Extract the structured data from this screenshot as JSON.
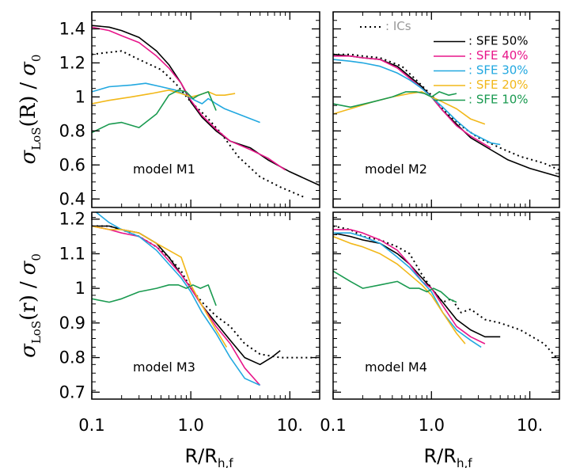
{
  "colors": {
    "ics": "#000000",
    "sfe50": "#000000",
    "sfe40": "#e8168a",
    "sfe30": "#22a8e0",
    "sfe20": "#f2b81a",
    "sfe10": "#1a9a50",
    "ics_label": "#999999"
  },
  "legend": [
    {
      "key": "ics",
      "text": ": ICs"
    },
    {
      "key": "sfe50",
      "text": ": SFE 50%"
    },
    {
      "key": "sfe40",
      "text": ": SFE 40%"
    },
    {
      "key": "sfe30",
      "text": ": SFE 30%"
    },
    {
      "key": "sfe20",
      "text": ": SFE 20%"
    },
    {
      "key": "sfe10",
      "text": ": SFE 10%"
    }
  ],
  "axes": {
    "ylabel_top_sym": "σ",
    "ylabel_top_sub": "LoS",
    "ylabel_top_arg": "(R)",
    "ylabel_top_div": "/",
    "ylabel_top_den": "σ",
    "ylabel_top_den_sub": "0",
    "ylabel_bot_sym": "σ",
    "ylabel_bot_sub": "LoS",
    "ylabel_bot_arg": "(r)",
    "ylabel_bot_div": "/",
    "ylabel_bot_den": "σ",
    "ylabel_bot_den_sub": "0",
    "xlabel_main": "R/R",
    "xlabel_sub": "h,f"
  },
  "chart_data": [
    {
      "type": "line",
      "panel": "M1",
      "label": "model M1",
      "x_scale": "log",
      "xlim": [
        0.1,
        20
      ],
      "ylim": [
        0.35,
        1.5
      ],
      "yticks": [
        0.4,
        0.6,
        0.8,
        1.0,
        1.2,
        1.4
      ],
      "xticks": [
        0.1,
        1.0,
        10.0
      ],
      "series": [
        {
          "key": "ics",
          "x": [
            0.1,
            0.14,
            0.2,
            0.3,
            0.5,
            0.7,
            1.0,
            1.4,
            2.0,
            3.0,
            5.0,
            8.0,
            14.0
          ],
          "y": [
            1.25,
            1.26,
            1.27,
            1.22,
            1.16,
            1.08,
            0.97,
            0.89,
            0.79,
            0.65,
            0.53,
            0.47,
            0.41
          ]
        },
        {
          "key": "sfe50",
          "x": [
            0.1,
            0.15,
            0.2,
            0.3,
            0.45,
            0.6,
            0.8,
            1.0,
            1.3,
            1.8,
            2.5,
            4.0,
            6.0,
            10.0,
            20.0
          ],
          "y": [
            1.42,
            1.41,
            1.39,
            1.35,
            1.27,
            1.19,
            1.08,
            0.97,
            0.88,
            0.8,
            0.74,
            0.7,
            0.63,
            0.56,
            0.48
          ]
        },
        {
          "key": "sfe40",
          "x": [
            0.1,
            0.15,
            0.2,
            0.3,
            0.45,
            0.6,
            0.8,
            1.0,
            1.3,
            1.8,
            2.5,
            4.0,
            6.0,
            9.0
          ],
          "y": [
            1.41,
            1.39,
            1.36,
            1.32,
            1.24,
            1.17,
            1.08,
            0.98,
            0.89,
            0.81,
            0.74,
            0.69,
            0.64,
            0.57
          ]
        },
        {
          "key": "sfe30",
          "x": [
            0.1,
            0.15,
            0.25,
            0.35,
            0.5,
            0.7,
            0.9,
            1.1,
            1.3,
            1.5,
            1.8,
            2.2,
            5.0
          ],
          "y": [
            1.03,
            1.06,
            1.07,
            1.08,
            1.06,
            1.04,
            1.01,
            0.98,
            0.96,
            0.99,
            0.96,
            0.93,
            0.85
          ]
        },
        {
          "key": "sfe20",
          "x": [
            0.1,
            0.15,
            0.25,
            0.4,
            0.6,
            0.8,
            1.0,
            1.2,
            1.5,
            1.8,
            2.2,
            2.8
          ],
          "y": [
            0.96,
            0.98,
            1.0,
            1.02,
            1.04,
            1.02,
            1.0,
            1.01,
            1.03,
            1.01,
            1.01,
            1.02
          ]
        },
        {
          "key": "sfe10",
          "x": [
            0.1,
            0.15,
            0.2,
            0.3,
            0.45,
            0.6,
            0.75,
            0.9,
            1.05,
            1.2,
            1.5,
            1.8
          ],
          "y": [
            0.79,
            0.84,
            0.85,
            0.82,
            0.9,
            1.01,
            1.04,
            1.03,
            0.99,
            1.01,
            1.03,
            0.92
          ]
        }
      ]
    },
    {
      "type": "line",
      "panel": "M2",
      "label": "model M2",
      "x_scale": "log",
      "xlim": [
        0.1,
        20
      ],
      "ylim": [
        0.35,
        1.5
      ],
      "yticks": [
        0.4,
        0.6,
        0.8,
        1.0,
        1.2,
        1.4
      ],
      "xticks": [
        0.1,
        1.0,
        10.0
      ],
      "series": [
        {
          "key": "ics",
          "x": [
            0.1,
            0.15,
            0.2,
            0.3,
            0.5,
            0.7,
            1.0,
            1.4,
            2.0,
            3.0,
            5.0,
            8.0,
            14.0,
            20.0
          ],
          "y": [
            1.25,
            1.25,
            1.24,
            1.23,
            1.18,
            1.1,
            1.01,
            0.91,
            0.83,
            0.76,
            0.7,
            0.65,
            0.61,
            0.57
          ]
        },
        {
          "key": "sfe50",
          "x": [
            0.1,
            0.15,
            0.2,
            0.3,
            0.45,
            0.6,
            0.8,
            1.0,
            1.3,
            1.8,
            2.5,
            4.0,
            6.0,
            10.0,
            20.0
          ],
          "y": [
            1.25,
            1.24,
            1.23,
            1.22,
            1.18,
            1.12,
            1.06,
            1.0,
            0.92,
            0.84,
            0.76,
            0.69,
            0.63,
            0.58,
            0.53
          ]
        },
        {
          "key": "sfe40",
          "x": [
            0.1,
            0.15,
            0.2,
            0.3,
            0.45,
            0.6,
            0.8,
            1.0,
            1.3,
            1.8,
            2.5,
            4.0
          ],
          "y": [
            1.24,
            1.24,
            1.23,
            1.22,
            1.17,
            1.11,
            1.05,
            1.0,
            0.92,
            0.83,
            0.77,
            0.7
          ]
        },
        {
          "key": "sfe30",
          "x": [
            0.1,
            0.15,
            0.2,
            0.3,
            0.45,
            0.6,
            0.8,
            1.0,
            1.3,
            1.8,
            2.5,
            4.0,
            5.0
          ],
          "y": [
            1.22,
            1.21,
            1.2,
            1.18,
            1.14,
            1.1,
            1.05,
            1.0,
            0.94,
            0.86,
            0.79,
            0.73,
            0.72
          ]
        },
        {
          "key": "sfe20",
          "x": [
            0.1,
            0.15,
            0.25,
            0.4,
            0.6,
            0.8,
            1.0,
            1.3,
            1.8,
            2.5,
            3.5
          ],
          "y": [
            0.9,
            0.93,
            0.97,
            1.0,
            1.02,
            1.03,
            1.0,
            0.97,
            0.93,
            0.87,
            0.84
          ]
        },
        {
          "key": "sfe10",
          "x": [
            0.1,
            0.15,
            0.25,
            0.4,
            0.55,
            0.7,
            0.85,
            1.0,
            1.2,
            1.5,
            1.8
          ],
          "y": [
            0.96,
            0.94,
            0.97,
            1.0,
            1.03,
            1.03,
            1.02,
            1.0,
            1.03,
            1.01,
            1.02
          ]
        }
      ]
    },
    {
      "type": "line",
      "panel": "M3",
      "label": "model M3",
      "x_scale": "log",
      "xlim": [
        0.1,
        20
      ],
      "ylim": [
        0.68,
        1.22
      ],
      "yticks": [
        0.7,
        0.8,
        0.9,
        1.0,
        1.1,
        1.2
      ],
      "xticks": [
        0.1,
        1.0,
        10.0
      ],
      "series": [
        {
          "key": "ics",
          "x": [
            0.1,
            0.15,
            0.2,
            0.3,
            0.45,
            0.6,
            0.8,
            1.0,
            1.3,
            1.8,
            2.5,
            3.5,
            5.0,
            8.0,
            14.0,
            20.0
          ],
          "y": [
            1.18,
            1.18,
            1.17,
            1.15,
            1.12,
            1.09,
            1.05,
            1.0,
            0.96,
            0.92,
            0.89,
            0.84,
            0.81,
            0.8,
            0.8,
            0.8
          ]
        },
        {
          "key": "sfe50",
          "x": [
            0.1,
            0.15,
            0.2,
            0.3,
            0.45,
            0.6,
            0.8,
            1.0,
            1.3,
            1.8,
            2.5,
            3.5,
            5.0,
            6.5,
            8.0
          ],
          "y": [
            1.18,
            1.18,
            1.17,
            1.16,
            1.13,
            1.09,
            1.04,
            1.0,
            0.95,
            0.9,
            0.85,
            0.8,
            0.78,
            0.8,
            0.82
          ]
        },
        {
          "key": "sfe40",
          "x": [
            0.1,
            0.15,
            0.2,
            0.3,
            0.45,
            0.6,
            0.8,
            1.0,
            1.3,
            1.8,
            2.5,
            3.5,
            5.0
          ],
          "y": [
            1.18,
            1.17,
            1.16,
            1.15,
            1.12,
            1.08,
            1.04,
            1.0,
            0.95,
            0.89,
            0.84,
            0.77,
            0.72
          ]
        },
        {
          "key": "sfe30",
          "x": [
            0.1,
            0.15,
            0.2,
            0.3,
            0.45,
            0.6,
            0.8,
            1.0,
            1.3,
            1.8,
            2.5,
            3.5,
            5.0
          ],
          "y": [
            1.23,
            1.19,
            1.17,
            1.15,
            1.11,
            1.07,
            1.03,
            0.99,
            0.93,
            0.87,
            0.8,
            0.74,
            0.72
          ]
        },
        {
          "key": "sfe20",
          "x": [
            0.1,
            0.15,
            0.2,
            0.3,
            0.45,
            0.6,
            0.8,
            1.0,
            1.3,
            1.8,
            2.3
          ],
          "y": [
            1.18,
            1.17,
            1.17,
            1.16,
            1.13,
            1.11,
            1.09,
            1.01,
            0.95,
            0.88,
            0.83
          ]
        },
        {
          "key": "sfe10",
          "x": [
            0.1,
            0.15,
            0.2,
            0.3,
            0.45,
            0.6,
            0.75,
            0.9,
            1.05,
            1.25,
            1.5,
            1.8
          ],
          "y": [
            0.97,
            0.96,
            0.97,
            0.99,
            1.0,
            1.01,
            1.01,
            1.0,
            1.01,
            1.0,
            1.01,
            0.95
          ]
        }
      ]
    },
    {
      "type": "line",
      "panel": "M4",
      "label": "model M4",
      "x_scale": "log",
      "xlim": [
        0.1,
        20
      ],
      "ylim": [
        0.68,
        1.22
      ],
      "yticks": [
        0.7,
        0.8,
        0.9,
        1.0,
        1.1,
        1.2
      ],
      "xticks": [
        0.1,
        1.0,
        10.0
      ],
      "series": [
        {
          "key": "ics",
          "x": [
            0.1,
            0.15,
            0.2,
            0.3,
            0.45,
            0.6,
            0.8,
            1.0,
            1.3,
            1.6,
            2.0,
            2.5,
            3.5,
            5.0,
            8.0,
            14.0,
            20.0
          ],
          "y": [
            1.18,
            1.17,
            1.15,
            1.14,
            1.12,
            1.1,
            1.04,
            1.0,
            0.96,
            0.97,
            0.93,
            0.94,
            0.91,
            0.9,
            0.88,
            0.84,
            0.79
          ]
        },
        {
          "key": "sfe50",
          "x": [
            0.1,
            0.15,
            0.2,
            0.3,
            0.45,
            0.6,
            0.8,
            1.0,
            1.3,
            1.8,
            2.5,
            3.5,
            5.0
          ],
          "y": [
            1.16,
            1.15,
            1.14,
            1.13,
            1.1,
            1.07,
            1.03,
            1.0,
            0.96,
            0.91,
            0.88,
            0.86,
            0.86
          ]
        },
        {
          "key": "sfe40",
          "x": [
            0.1,
            0.15,
            0.2,
            0.3,
            0.45,
            0.6,
            0.8,
            1.0,
            1.3,
            1.8,
            2.5,
            3.5
          ],
          "y": [
            1.17,
            1.17,
            1.16,
            1.14,
            1.11,
            1.07,
            1.02,
            1.0,
            0.95,
            0.89,
            0.86,
            0.84
          ]
        },
        {
          "key": "sfe30",
          "x": [
            0.1,
            0.15,
            0.2,
            0.3,
            0.45,
            0.6,
            0.8,
            1.0,
            1.3,
            1.8,
            2.5,
            3.2
          ],
          "y": [
            1.16,
            1.16,
            1.15,
            1.13,
            1.09,
            1.06,
            1.02,
            0.99,
            0.93,
            0.88,
            0.85,
            0.83
          ]
        },
        {
          "key": "sfe20",
          "x": [
            0.1,
            0.15,
            0.2,
            0.3,
            0.45,
            0.6,
            0.8,
            1.0,
            1.3,
            1.8,
            2.2
          ],
          "y": [
            1.15,
            1.13,
            1.12,
            1.1,
            1.07,
            1.04,
            1.01,
            0.98,
            0.93,
            0.87,
            0.84
          ]
        },
        {
          "key": "sfe10",
          "x": [
            0.1,
            0.15,
            0.2,
            0.3,
            0.45,
            0.6,
            0.75,
            0.9,
            1.05,
            1.25,
            1.5,
            1.8
          ],
          "y": [
            1.05,
            1.02,
            1.0,
            1.01,
            1.02,
            1.0,
            1.0,
            0.99,
            1.0,
            0.99,
            0.97,
            0.96
          ]
        }
      ]
    }
  ]
}
